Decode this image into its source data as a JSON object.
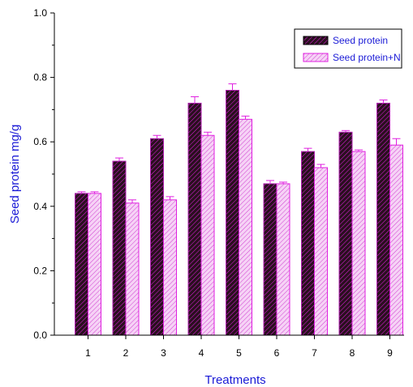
{
  "chart_data": {
    "type": "bar",
    "xlabel": "Treatments",
    "ylabel": "Seed protein mg/g",
    "ylim": [
      0,
      1.0
    ],
    "yticks": [
      "0.0",
      "0.2",
      "0.4",
      "0.6",
      "0.8",
      "1.0"
    ],
    "categories": [
      "1",
      "2",
      "3",
      "4",
      "5",
      "6",
      "7",
      "8",
      "9"
    ],
    "legend_position": "top-right",
    "series": [
      {
        "name": "Seed protein",
        "values": [
          0.44,
          0.54,
          0.61,
          0.72,
          0.76,
          0.47,
          0.57,
          0.63,
          0.72
        ],
        "errors": [
          0.005,
          0.01,
          0.01,
          0.02,
          0.02,
          0.01,
          0.01,
          0.005,
          0.01
        ],
        "fill": "#2a0f1f",
        "stroke": "#e020e0",
        "pattern": "dense-hatch"
      },
      {
        "name": "Seed protein+N",
        "values": [
          0.44,
          0.41,
          0.42,
          0.62,
          0.67,
          0.47,
          0.52,
          0.57,
          0.59
        ],
        "errors": [
          0.005,
          0.01,
          0.01,
          0.01,
          0.01,
          0.005,
          0.01,
          0.005,
          0.02
        ],
        "fill": "#f4c0f4",
        "stroke": "#e020e0",
        "pattern": "light-hatch"
      }
    ],
    "colors": {
      "axis_title": "#1a1ad6",
      "legend_text": "#1a1ad6",
      "axis": "#000000"
    }
  }
}
